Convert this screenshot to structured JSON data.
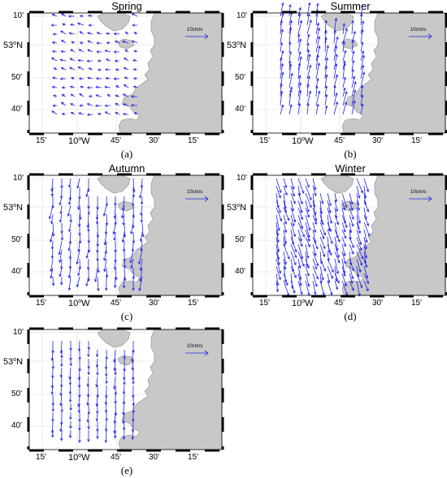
{
  "figure": {
    "colors": {
      "land": "#c8c8c8",
      "coast": "#8a8a8a",
      "vector": "#2323e6",
      "grid": "#d8d8d8",
      "frame": "#000000"
    },
    "axis_labels": {
      "x": [
        "15'",
        "10",
        "W",
        "45'",
        "30'",
        "15'"
      ],
      "y": [
        "10'",
        "53",
        "N",
        "50'",
        "40'"
      ],
      "deg": "o"
    },
    "scale_label": "10cm/s",
    "panels": [
      {
        "id": "spring",
        "title": "Spring",
        "caption": "(a)"
      },
      {
        "id": "summer",
        "title": "Summer",
        "caption": "(b)"
      },
      {
        "id": "autumn",
        "title": "Autumn",
        "caption": "(c)"
      },
      {
        "id": "winter",
        "title": "Winter",
        "caption": "(d)"
      },
      {
        "id": "annual",
        "title": "",
        "caption": "(e)"
      }
    ]
  }
}
